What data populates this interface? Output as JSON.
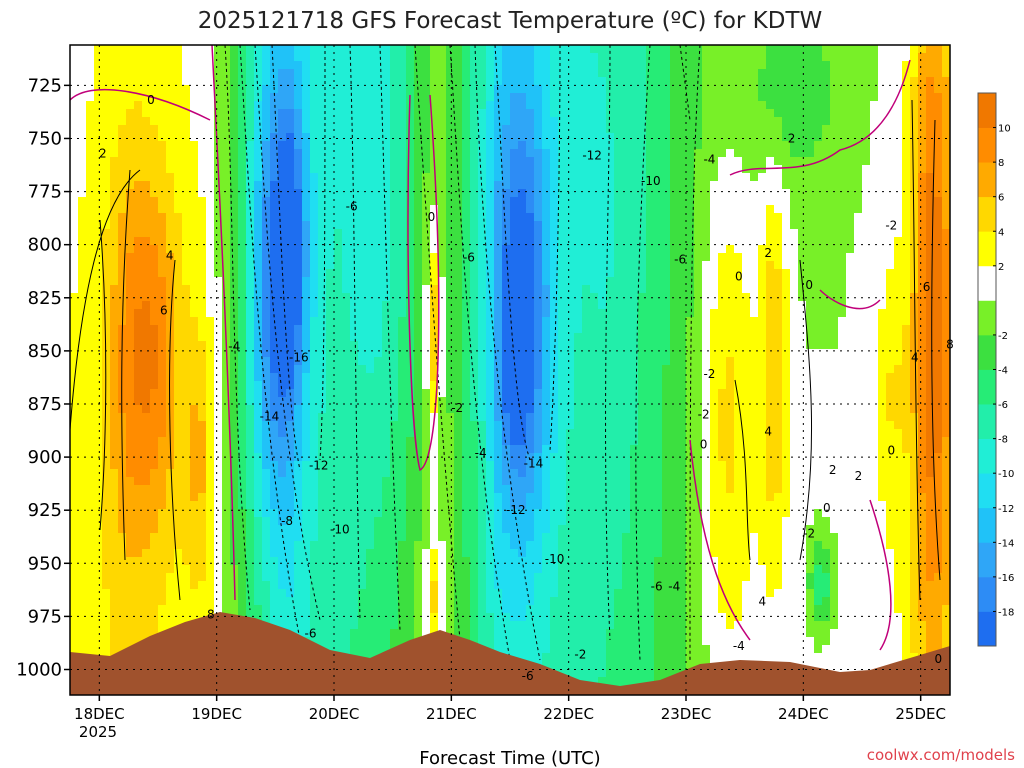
{
  "chart_data": {
    "type": "heatmap",
    "title": "2025121718 GFS Forecast Temperature (ºC) for KDTW",
    "xlabel": "Forecast Time (UTC)",
    "ylabel": "",
    "x_ticks": [
      "18DEC",
      "19DEC",
      "20DEC",
      "21DEC",
      "22DEC",
      "23DEC",
      "24DEC",
      "25DEC"
    ],
    "x_tick_year": "2025",
    "y_ticks": [
      "725",
      "750",
      "775",
      "800",
      "825",
      "850",
      "875",
      "900",
      "925",
      "950",
      "975",
      "1000"
    ],
    "y_range_hpa": [
      1012,
      706
    ],
    "time_range_days": [
      17.75,
      25.25
    ],
    "colorbar": {
      "levels": [
        -20,
        -18,
        -16,
        -14,
        -12,
        -10,
        -8,
        -6,
        -4,
        -2,
        0,
        2,
        4,
        6,
        8,
        10,
        12
      ],
      "tick_labels": [
        "-18",
        "-16",
        "-14",
        "-12",
        "-10",
        "-8",
        "-6",
        "-4",
        "-2",
        "2",
        "4",
        "6",
        "8",
        "10"
      ],
      "colors": [
        "#1e6ef0",
        "#2d8cf5",
        "#2fa6f7",
        "#20c2f8",
        "#20def2",
        "#20eed6",
        "#22eeaa",
        "#26ec76",
        "#3ce040",
        "#78f028",
        "#ffffff",
        "#ffff00",
        "#ffd800",
        "#ffaa00",
        "#ff8c00",
        "#f07800"
      ]
    },
    "contour_labels": [
      "0",
      "2",
      "4",
      "6",
      "8",
      "-4",
      "-14",
      "-16",
      "-6",
      "-12",
      "-8",
      "-10",
      "0",
      "-6",
      "-2",
      "-4",
      "-14",
      "-12",
      "-10",
      "-12",
      "-10",
      "-6",
      "-6",
      "-4",
      "-2",
      "-4",
      "0",
      "-2",
      "2",
      "0",
      "2",
      "-2",
      "4",
      "2",
      "-2",
      "0",
      "0",
      "-2",
      "4",
      "6",
      "8",
      "4",
      "2",
      "0",
      "-6",
      "-6",
      "-4",
      "0"
    ],
    "temperature_profile_samples": [
      {
        "time": "18DEC00",
        "t850": 3,
        "t950": 5
      },
      {
        "time": "18DEC12",
        "t850": 6,
        "t950": 7
      },
      {
        "time": "19DEC00",
        "t850": -2,
        "t950": 2
      },
      {
        "time": "19DEC12",
        "t850": -15,
        "t950": -8
      },
      {
        "time": "20DEC00",
        "t850": -12,
        "t950": -9
      },
      {
        "time": "20DEC12",
        "t850": -6,
        "t950": -4
      },
      {
        "time": "21DEC00",
        "t850": -5,
        "t950": -2
      },
      {
        "time": "21DEC12",
        "t850": -15,
        "t950": -10
      },
      {
        "time": "22DEC00",
        "t850": -12,
        "t950": -9
      },
      {
        "time": "22DEC12",
        "t850": -7,
        "t950": -5
      },
      {
        "time": "23DEC00",
        "t850": -3,
        "t950": -2
      },
      {
        "time": "23DEC12",
        "t850": 1,
        "t950": -1
      },
      {
        "time": "24DEC00",
        "t850": 2,
        "t950": 0
      },
      {
        "time": "24DEC12",
        "t850": 1,
        "t950": -2
      },
      {
        "time": "25DEC00",
        "t850": 6,
        "t950": 3
      }
    ],
    "terrain_color": "#a0522d"
  },
  "credit": "coolwx.com/models"
}
